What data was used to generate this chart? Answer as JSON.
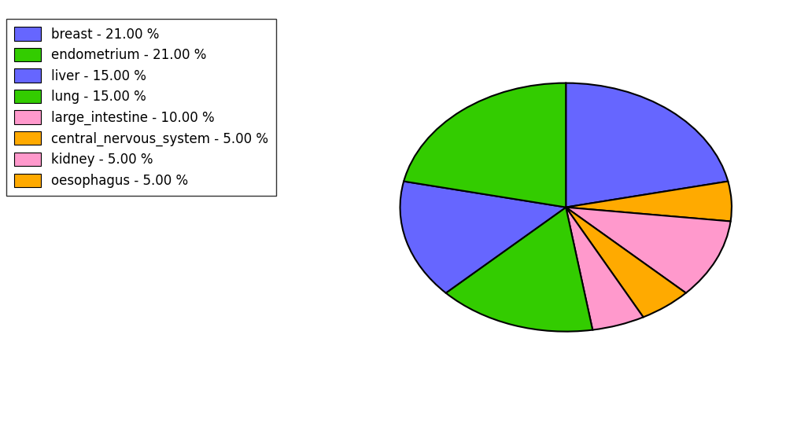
{
  "labels": [
    "breast",
    "central_nervous_system",
    "large_intestine",
    "oesophagus",
    "kidney",
    "lung",
    "liver",
    "endometrium"
  ],
  "sizes": [
    21.0,
    5.0,
    10.0,
    5.0,
    5.0,
    15.0,
    15.0,
    21.0
  ],
  "colors": [
    "#6666ff",
    "#ffaa00",
    "#ff99cc",
    "#ffaa00",
    "#ff99cc",
    "#33cc00",
    "#6666ff",
    "#33cc00"
  ],
  "legend_labels": [
    "breast - 21.00 %",
    "endometrium - 21.00 %",
    "liver - 15.00 %",
    "lung - 15.00 %",
    "large_intestine - 10.00 %",
    "central_nervous_system - 5.00 %",
    "kidney - 5.00 %",
    "oesophagus - 5.00 %"
  ],
  "legend_colors": [
    "#6666ff",
    "#33cc00",
    "#6666ff",
    "#33cc00",
    "#ff99cc",
    "#ffaa00",
    "#ff99cc",
    "#ffaa00"
  ],
  "startangle": 90,
  "figsize": [
    10.13,
    5.38
  ],
  "dpi": 100
}
